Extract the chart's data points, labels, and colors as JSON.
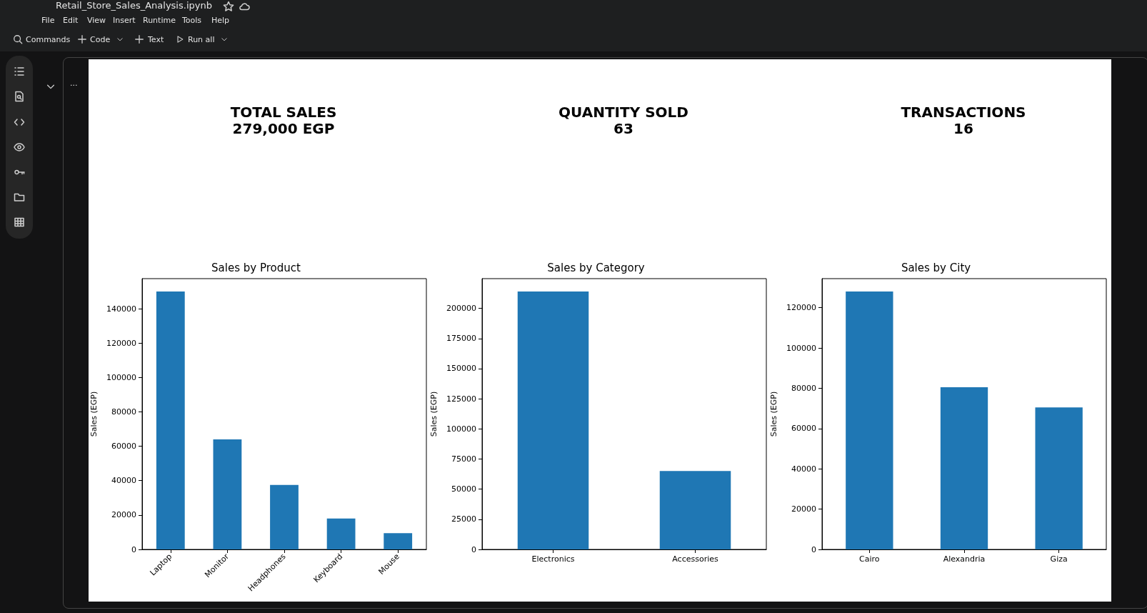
{
  "chart_data": [
    {
      "type": "other",
      "title": "Retail_Store_Sales_Analysis.ipynb",
      "annotations": [
        "File",
        "Edit",
        "View",
        "Insert",
        "Runtime",
        "Tools",
        "Help",
        "Commands",
        "Code",
        "Text",
        "Run all",
        "..."
      ]
    },
    {
      "type": "other",
      "annotations": [
        "TOTAL SALES",
        "279,000 EGP",
        "QUANTITY SOLD",
        "63",
        "TRANSACTIONS",
        "16"
      ]
    },
    {
      "type": "bar",
      "title": "Sales by Product",
      "ylabel": "Sales (EGP)",
      "categories": [
        "Laptop",
        "Monitor",
        "Headphones",
        "Keyboard",
        "Mouse"
      ],
      "values": [
        150000,
        64000,
        37500,
        18000,
        9500
      ],
      "color": "#1f77b4",
      "ylim": [
        0,
        157500
      ],
      "yticks": [
        0,
        20000,
        40000,
        60000,
        80000,
        100000,
        120000,
        140000
      ],
      "grid": false
    },
    {
      "type": "bar",
      "title": "Sales by Category",
      "ylabel": "Sales (EGP)",
      "categories": [
        "Electronics",
        "Accessories"
      ],
      "values": [
        214000,
        65000
      ],
      "color": "#1f77b4",
      "ylim": [
        0,
        224700
      ],
      "yticks": [
        0,
        25000,
        50000,
        75000,
        100000,
        125000,
        150000,
        175000,
        200000
      ],
      "grid": false
    },
    {
      "type": "bar",
      "title": "Sales by City",
      "ylabel": "Sales (EGP)",
      "categories": [
        "Cairo",
        "Alexandria",
        "Giza"
      ],
      "values": [
        128000,
        80500,
        70500
      ],
      "color": "#1f77b4",
      "ylim": [
        0,
        134400
      ],
      "yticks": [
        0,
        20000,
        40000,
        60000,
        80000,
        100000,
        120000
      ],
      "grid": false
    }
  ]
}
